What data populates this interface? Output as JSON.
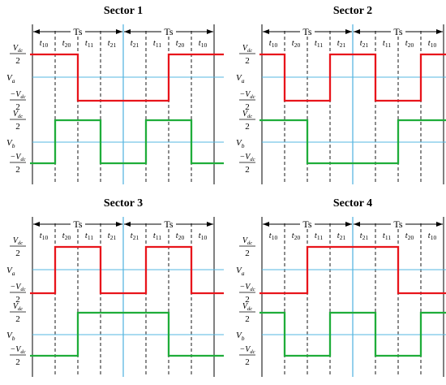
{
  "colors": {
    "va_wave": "#e8141b",
    "vb_wave": "#1fad3a",
    "zero_line": "#55b7e0",
    "mid_line": "#2aa0d8",
    "frame": "#000000",
    "dashed": "#000000"
  },
  "labels": {
    "period": "Ts",
    "level_high_var": "V",
    "level_high_sub": "dc",
    "level_low_var": "−V",
    "level_low_sub": "dc",
    "level_den": "2",
    "va_var": "V",
    "va_sub": "a",
    "vb_var": "V",
    "vb_sub": "b",
    "t_var": "t",
    "time_subs": [
      "10",
      "20",
      "11",
      "21",
      "21",
      "11",
      "20",
      "10"
    ]
  },
  "time_axis": {
    "units": "fraction of Ts",
    "boundaries": [
      0,
      0.25,
      0.5,
      0.75,
      1.0,
      1.25,
      1.5,
      1.75,
      2.0
    ]
  },
  "panels": [
    {
      "title": "Sector 1",
      "va": [
        [
          0,
          1
        ],
        [
          0.5,
          -1
        ],
        [
          1.5,
          1
        ]
      ],
      "vb": [
        [
          0,
          -1
        ],
        [
          0.25,
          1
        ],
        [
          0.75,
          -1
        ],
        [
          1.25,
          1
        ],
        [
          1.75,
          -1
        ]
      ]
    },
    {
      "title": "Sector 2",
      "va": [
        [
          0,
          1
        ],
        [
          0.25,
          -1
        ],
        [
          0.75,
          1
        ],
        [
          1.25,
          -1
        ],
        [
          1.75,
          1
        ]
      ],
      "vb": [
        [
          0,
          1
        ],
        [
          0.5,
          -1
        ],
        [
          1.5,
          1
        ]
      ]
    },
    {
      "title": "Sector 3",
      "va": [
        [
          0,
          -1
        ],
        [
          0.25,
          1
        ],
        [
          0.75,
          -1
        ],
        [
          1.25,
          1
        ],
        [
          1.75,
          -1
        ]
      ],
      "vb": [
        [
          0,
          -1
        ],
        [
          0.5,
          1
        ],
        [
          1.5,
          -1
        ]
      ]
    },
    {
      "title": "Sector 4",
      "va": [
        [
          0,
          -1
        ],
        [
          0.5,
          1
        ],
        [
          1.5,
          -1
        ]
      ],
      "vb": [
        [
          0,
          1
        ],
        [
          0.25,
          -1
        ],
        [
          0.75,
          1
        ],
        [
          1.25,
          -1
        ],
        [
          1.75,
          1
        ]
      ]
    }
  ]
}
